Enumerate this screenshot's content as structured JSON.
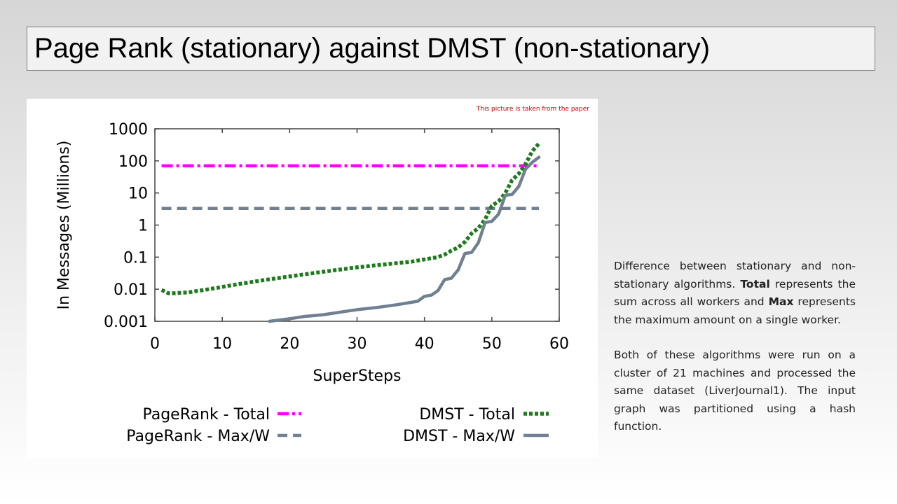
{
  "slide": {
    "title": "Page Rank (stationary) against DMST (non-stationary)",
    "source_note": "This picture is taken from the paper"
  },
  "caption": {
    "p1": [
      {
        "text": "Difference between stationary and non-stationary algorithms. ",
        "bold": false
      },
      {
        "text": "Total",
        "bold": true
      },
      {
        "text": " represents the sum across all workers and ",
        "bold": false
      },
      {
        "text": "Max",
        "bold": true
      },
      {
        "text": " represents the maximum amount on a single worker.",
        "bold": false
      }
    ],
    "p2": "Both of these algorithms were run on a cluster of 21 machines and processed the same dataset (LiverJournal1). The input graph was partitioned using a hash function."
  },
  "colors": {
    "pagerank_total": "#ff00ff",
    "pagerank_max": "#708090",
    "dmst_total": "#1f7a1f",
    "dmst_max": "#708090",
    "source_note": "#cc0000"
  },
  "chart_data": {
    "type": "line",
    "xlabel": "SuperSteps",
    "ylabel": "In Messages (Millions)",
    "xlim": [
      0,
      60
    ],
    "ylim": [
      0.001,
      1000
    ],
    "yscale": "log",
    "xticks": [
      0,
      10,
      20,
      30,
      40,
      50,
      60
    ],
    "xtick_labels": [
      "0",
      "10",
      "20",
      "30",
      "40",
      "50",
      "60"
    ],
    "yticks": [
      0.001,
      0.01,
      0.1,
      1,
      10,
      100,
      1000
    ],
    "ytick_labels": [
      "0.001",
      "0.01",
      "0.1",
      "1",
      "10",
      "100",
      "1000"
    ],
    "grid": false,
    "legend_position": "bottom",
    "series": [
      {
        "name": "PageRank - Total",
        "style": "dash-dot",
        "x": [
          1,
          57
        ],
        "y": [
          70,
          70
        ]
      },
      {
        "name": "PageRank - Max/W",
        "style": "dashed",
        "x": [
          1,
          57
        ],
        "y": [
          3.3,
          3.3
        ]
      },
      {
        "name": "DMST - Total",
        "style": "dotted",
        "x": [
          1,
          2,
          3,
          5,
          8,
          12,
          16,
          20,
          25,
          30,
          35,
          38,
          40,
          42,
          43,
          44,
          45,
          46,
          47,
          48,
          49,
          50,
          51,
          52,
          53,
          54,
          55,
          56,
          57
        ],
        "y": [
          0.0095,
          0.0075,
          0.0075,
          0.008,
          0.01,
          0.014,
          0.019,
          0.025,
          0.035,
          0.048,
          0.062,
          0.072,
          0.085,
          0.1,
          0.12,
          0.16,
          0.2,
          0.3,
          0.55,
          0.8,
          1.5,
          4,
          5.5,
          10,
          25,
          40,
          80,
          200,
          350
        ]
      },
      {
        "name": "DMST - Max/W",
        "style": "solid",
        "x": [
          17,
          20,
          22,
          25,
          28,
          30,
          33,
          36,
          39,
          40,
          41,
          42,
          43,
          44,
          45,
          46,
          47,
          48,
          49,
          50,
          51,
          52,
          53,
          54,
          55,
          56,
          57
        ],
        "y": [
          0.001,
          0.0012,
          0.0014,
          0.0016,
          0.002,
          0.0023,
          0.0027,
          0.0033,
          0.0042,
          0.006,
          0.0065,
          0.009,
          0.02,
          0.022,
          0.04,
          0.13,
          0.14,
          0.28,
          1.2,
          1.3,
          2.2,
          8.5,
          9,
          16,
          55,
          90,
          130
        ]
      }
    ]
  }
}
